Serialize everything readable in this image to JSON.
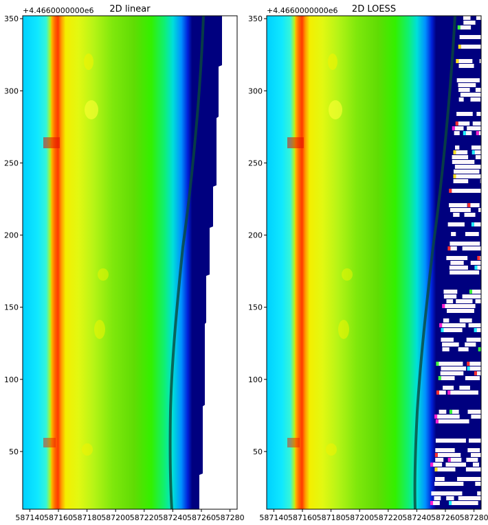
{
  "chart_data": [
    {
      "type": "heatmap",
      "title": "2D linear",
      "y_offset_label": "+4.4660000000e6",
      "x_ticks": [
        587140,
        587160,
        587180,
        587200,
        587220,
        587240,
        587260,
        587280
      ],
      "y_ticks": [
        50,
        100,
        150,
        200,
        250,
        300,
        350
      ],
      "xlim": [
        587135,
        587285
      ],
      "ylim": [
        10,
        352
      ],
      "colormap": "jet-like (blue-cyan-green-yellow-red)",
      "colors": {
        "deep_water": "#00007f",
        "no_data": "#ffffff",
        "cyan": "#00e5ff",
        "green": "#33f000",
        "yellow": "#f2f200",
        "orange": "#ff9000",
        "red": "#e01000"
      },
      "gaps": "none"
    },
    {
      "type": "heatmap",
      "title": "2D LOESS",
      "y_offset_label": "+4.4660000000e6",
      "x_ticks": [
        587140,
        587160,
        587180,
        587200,
        587220,
        587240,
        587260,
        587280
      ],
      "y_ticks": [
        50,
        100,
        150,
        200,
        250,
        300,
        350
      ],
      "xlim": [
        587135,
        587285
      ],
      "ylim": [
        10,
        352
      ],
      "colormap": "jet-like (blue-cyan-green-yellow-red)",
      "colors": {
        "deep_water": "#00007f",
        "no_data": "#fdf7fb",
        "cyan": "#00e5ff",
        "green": "#33f000",
        "yellow": "#f2f200",
        "orange": "#ff9000",
        "red": "#e01000"
      },
      "gaps": "striped white gaps in offshore deep-water region"
    }
  ]
}
